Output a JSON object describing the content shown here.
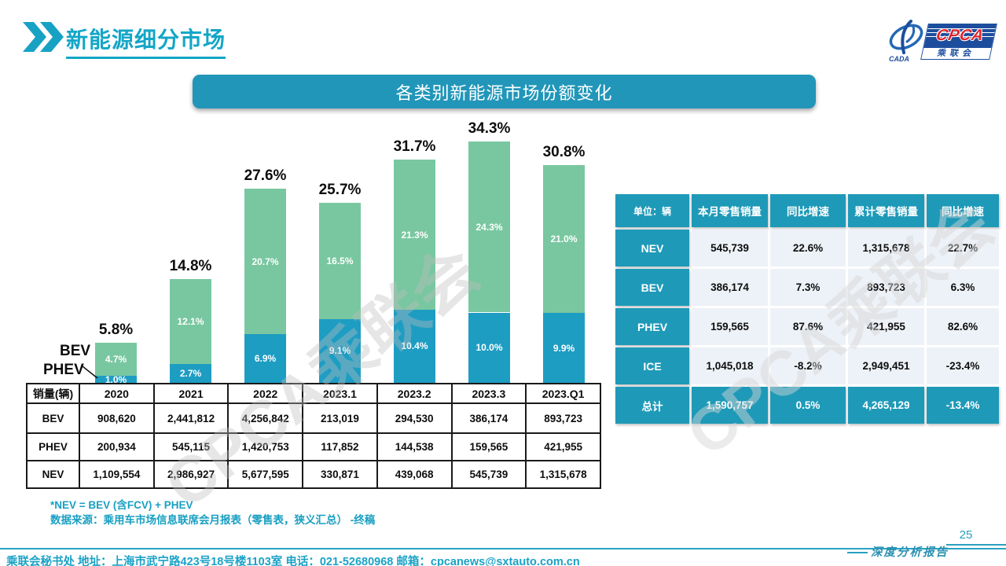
{
  "page": {
    "title": "新能源细分市场",
    "page_number": "25",
    "report_label": "深度分析报告",
    "watermark": "CPCA乘联会"
  },
  "logo": {
    "cpca": "CPCA",
    "cn": "乘联会",
    "cada": "CADA"
  },
  "banner": {
    "title": "各类别新能源市场份额变化"
  },
  "chart_data": {
    "type": "bar",
    "stacked": true,
    "categories": [
      "2020",
      "2021",
      "2022",
      "2023.1",
      "2023.2",
      "2023.3",
      "2023.Q1"
    ],
    "series": [
      {
        "name": "PHEV",
        "color": "#1e9dc3",
        "values": [
          1.0,
          2.7,
          6.9,
          9.1,
          10.4,
          10.0,
          9.9
        ]
      },
      {
        "name": "BEV",
        "color": "#79c7a0",
        "values": [
          4.7,
          12.1,
          20.7,
          16.5,
          21.3,
          24.3,
          21.0
        ]
      }
    ],
    "totals": [
      5.8,
      14.8,
      27.6,
      25.7,
      31.7,
      34.3,
      30.8
    ],
    "value_suffix": "%",
    "ylim": [
      0,
      37.5
    ],
    "title": "各类别新能源市场份额变化",
    "legend_position": "left-of-first-bar",
    "grid": false
  },
  "sales_table": {
    "corner": "销量(辆)",
    "rows": [
      {
        "label": "BEV",
        "values": [
          "908,620",
          "2,441,812",
          "4,256,842",
          "213,019",
          "294,530",
          "386,174",
          "893,723"
        ]
      },
      {
        "label": "PHEV",
        "values": [
          "200,934",
          "545,115",
          "1,420,753",
          "117,852",
          "144,538",
          "159,565",
          "421,955"
        ]
      },
      {
        "label": "NEV",
        "values": [
          "1,109,554",
          "2,986,927",
          "5,677,595",
          "330,871",
          "439,068",
          "545,739",
          "1,315,678"
        ]
      }
    ]
  },
  "summary_table": {
    "header": [
      "单位：辆",
      "本月零售销量",
      "同比增速",
      "累计零售销量",
      "同比增速"
    ],
    "rows": [
      {
        "label": "NEV",
        "values": [
          "545,739",
          "22.6%",
          "1,315,678",
          "22.7%"
        ],
        "highlight": false
      },
      {
        "label": "BEV",
        "values": [
          "386,174",
          "7.3%",
          "893,723",
          "6.3%"
        ],
        "highlight": false
      },
      {
        "label": "PHEV",
        "values": [
          "159,565",
          "87.6%",
          "421,955",
          "82.6%"
        ],
        "highlight": false
      },
      {
        "label": "ICE",
        "values": [
          "1,045,018",
          "-8.2%",
          "2,949,451",
          "-23.4%"
        ],
        "highlight": false
      },
      {
        "label": "总计",
        "values": [
          "1,590,757",
          "0.5%",
          "4,265,129",
          "-13.4%"
        ],
        "highlight": true
      }
    ]
  },
  "notes": {
    "line1": "*NEV = BEV (含FCV) + PHEV",
    "line2": "数据来源：乘用车市场信息联席会月报表（零售表，狭义汇总） -终稿"
  },
  "footer": {
    "text": "乘联会秘书处  地址：上海市武宁路423号18号楼1103室 电话：021-52680968  邮箱：cpcanews@sxtauto.com.cn"
  },
  "colors": {
    "teal": "#1e9ab8",
    "banner_teal": "#2196b9",
    "bar_blue": "#1e9dc3",
    "bar_green": "#79c7a0",
    "title_teal": "#14a6c7",
    "logo_navy": "#1d4e9e",
    "logo_red": "#e0242b",
    "light_cell": "#edf2f8"
  }
}
